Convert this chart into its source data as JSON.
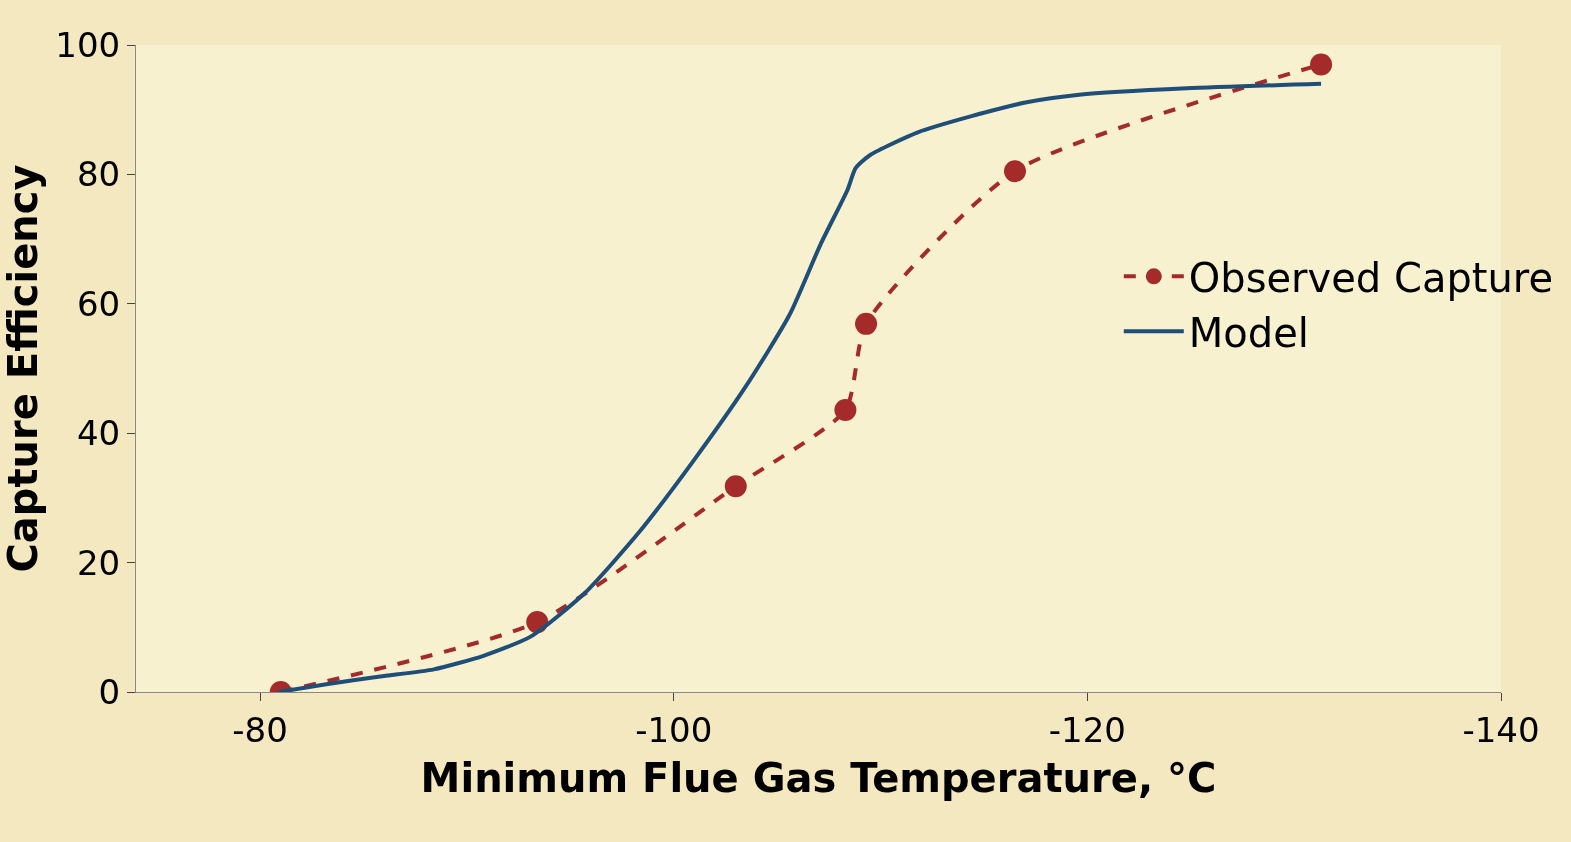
{
  "chart_data": {
    "type": "line",
    "xlabel": "Minimum Flue Gas Temperature, °C",
    "ylabel": "Capture Efficiency",
    "xlim": [
      -74,
      -140
    ],
    "xticks": [
      -80,
      -100,
      -120,
      -140
    ],
    "ylim": [
      0,
      100
    ],
    "yticks": [
      0,
      20,
      40,
      60,
      80,
      100
    ],
    "grid": false,
    "legend": "right",
    "series": [
      {
        "name": "Observed Capture",
        "color": "#a52a2a",
        "marker": "circle",
        "line_style": "dashed",
        "x": [
          -81.0,
          -93.4,
          -103.0,
          -108.3,
          -109.3,
          -116.5,
          -131.3
        ],
        "values": [
          0,
          10.8,
          31.8,
          43.6,
          56.9,
          80.5,
          97.0
        ]
      },
      {
        "name": "Model",
        "color": "#1f4e79",
        "marker": "none",
        "line_style": "solid",
        "x": [
          -80.9,
          -83.2,
          -85.8,
          -88.4,
          -90.8,
          -93.1,
          -95.7,
          -98.3,
          -100.9,
          -103.5,
          -105.6,
          -107.1,
          -108.4,
          -108.8,
          -109.5,
          -111.8,
          -114.4,
          -117.0,
          -119.6,
          -124.8,
          -131.3
        ],
        "values": [
          0,
          1.2,
          2.4,
          3.5,
          5.6,
          8.6,
          15.3,
          24.6,
          35.5,
          47.3,
          58.3,
          69.2,
          77.6,
          81.0,
          83.0,
          86.5,
          89.0,
          91.1,
          92.3,
          93.3,
          94.0
        ]
      }
    ]
  }
}
